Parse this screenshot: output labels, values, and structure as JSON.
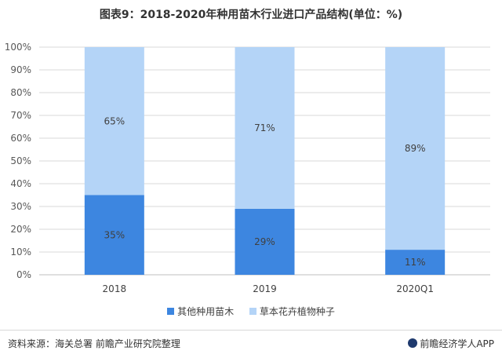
{
  "title": "图表9：2018-2020年种用苗木行业进口产品结构(单位：%)",
  "colors": {
    "series1": "#3d86e0",
    "series2": "#b4d4f7",
    "grid": "#d9d9d9",
    "axis": "#bfbfbf"
  },
  "chart_data": {
    "type": "bar",
    "stacked": true,
    "title": "图表9：2018-2020年种用苗木行业进口产品结构(单位：%)",
    "categories": [
      "2018",
      "2019",
      "2020Q1"
    ],
    "series": [
      {
        "name": "其他种用苗木",
        "values": [
          35,
          29,
          11
        ],
        "labels": [
          "35%",
          "29%",
          "11%"
        ]
      },
      {
        "name": "草本花卉植物种子",
        "values": [
          65,
          71,
          89
        ],
        "labels": [
          "65%",
          "71%",
          "89%"
        ]
      }
    ],
    "ylim": [
      0,
      100
    ],
    "yticks": [
      "0%",
      "10%",
      "20%",
      "30%",
      "40%",
      "50%",
      "60%",
      "70%",
      "80%",
      "90%",
      "100%"
    ],
    "grid": true,
    "legend": "bottom"
  },
  "footer": {
    "source": "资料来源：海关总署 前瞻产业研究院整理",
    "brand": "前瞻经济学人APP",
    "brand_icon": "qianzhan-logo-icon"
  }
}
